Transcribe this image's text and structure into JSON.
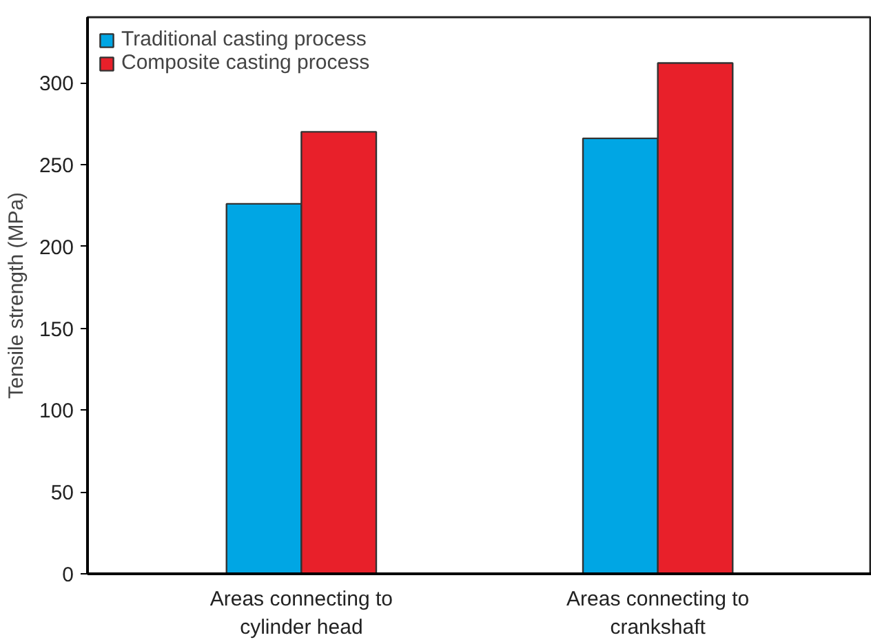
{
  "chart_data": {
    "type": "bar",
    "ylabel": "Tensile strength (MPa)",
    "categories": [
      "Areas connecting to\ncylinder head",
      "Areas connecting to\ncrankshaft"
    ],
    "series": [
      {
        "name": "Traditional casting process",
        "color": "#00a6e4",
        "values": [
          226,
          266
        ]
      },
      {
        "name": "Composite casting process",
        "color": "#e8202a",
        "values": [
          270,
          312
        ]
      }
    ],
    "ylim": [
      0,
      340
    ],
    "yticks": [
      0,
      50,
      100,
      150,
      200,
      250,
      300
    ],
    "grid": false,
    "legend": "top left"
  }
}
